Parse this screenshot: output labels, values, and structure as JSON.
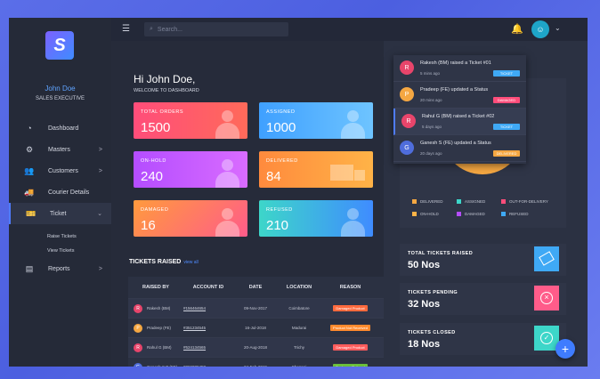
{
  "colors": {
    "accent": "#4f7cff",
    "total_orders": [
      "#ff4d7a",
      "#ff6a5a"
    ],
    "assigned": [
      "#3fa0ff",
      "#6ec4ff"
    ],
    "on_hold": [
      "#b44dff",
      "#d96cff"
    ],
    "delivered": [
      "#ff8a3d",
      "#ffb347"
    ],
    "damaged": [
      "#ff9a3d",
      "#ff5c8a"
    ],
    "refused": [
      "#3dd6c9",
      "#3f8cff"
    ]
  },
  "topbar": {
    "search_placeholder": "Search..."
  },
  "sidebar": {
    "user_name": "John Doe",
    "user_role": "SALES EXECUTIVE",
    "items": [
      {
        "label": "Dashboard",
        "icon": "gauge-icon",
        "chevron": ""
      },
      {
        "label": "Masters",
        "icon": "cog-icon",
        "chevron": ">"
      },
      {
        "label": "Customers",
        "icon": "users-icon",
        "chevron": ">"
      },
      {
        "label": "Courier Details",
        "icon": "truck-icon",
        "chevron": ""
      },
      {
        "label": "Ticket",
        "icon": "ticket-icon",
        "chevron": "⌄"
      }
    ],
    "sub_items": [
      "Raise Tickets",
      "View Tickets"
    ],
    "reports": {
      "label": "Reports",
      "icon": "report-icon",
      "chevron": ">"
    }
  },
  "greeting": {
    "title": "Hi John Doe,",
    "subtitle": "WELCOME TO DASHBOARD"
  },
  "cards": [
    {
      "label": "TOTAL ORDERS",
      "value": "1500"
    },
    {
      "label": "ASSIGNED",
      "value": "1000"
    },
    {
      "label": "ON-HOLD",
      "value": "240"
    },
    {
      "label": "DELIVERED",
      "value": "84"
    },
    {
      "label": "DAMAGED",
      "value": "16"
    },
    {
      "label": "REFUSED",
      "value": "210"
    }
  ],
  "tickets": {
    "title": "TICKETS RAISED",
    "view_all": "view all",
    "headers": [
      "RAISED BY",
      "ACCOUNT ID",
      "DATE",
      "LOCATION",
      "REASON"
    ],
    "rows": [
      {
        "initial": "R",
        "color": "#e8456b",
        "by": "Rakesh (BM)",
        "account": "#156464654",
        "date": "09-Nov-2017",
        "location": "Coimbatore",
        "reason": "Damaged Product",
        "reason_color": "#ff6a3d"
      },
      {
        "initial": "P",
        "color": "#f5a742",
        "by": "Pradeep (FE)",
        "account": "#351234545",
        "date": "16-Jul-2018",
        "location": "Madurai",
        "reason": "Product Not Received",
        "reason_color": "#ff8a2d"
      },
      {
        "initial": "R",
        "color": "#e8456b",
        "by": "Rahul G (BM)",
        "account": "#524134565",
        "date": "20-Aug-2018",
        "location": "Trichy",
        "reason": "Damaged Product",
        "reason_color": "#ff5c5c"
      },
      {
        "initial": "G",
        "color": "#4f6ddb",
        "by": "Ganesh S P (FE)",
        "account": "#266986458",
        "date": "04-Feb-2019",
        "location": "Chennai",
        "reason": "Customer Refused",
        "reason_color": "#6bbf3a"
      }
    ]
  },
  "notifications": [
    {
      "initial": "R",
      "color": "#e8456b",
      "text": "Rakesh (BM) raised a Ticket #01",
      "time": "5 mins ago",
      "badge": "TICKET",
      "badge_color": "#3fa9f5"
    },
    {
      "initial": "P",
      "color": "#f5a742",
      "text": "Pradeep (FE) updated a Status",
      "time": "20 mins ago",
      "badge": "DAMAGED",
      "badge_color": "#ff4d7a"
    },
    {
      "initial": "R",
      "color": "#e8456b",
      "text": "Rahul G (BM) raised a Ticket #02",
      "time": "5 days ago",
      "badge": "TICKET",
      "badge_color": "#3fa9f5"
    },
    {
      "initial": "G",
      "color": "#4f6ddb",
      "text": "Ganesh S (FE) updated a Status",
      "time": "20 days ago",
      "badge": "DELIVERED",
      "badge_color": "#f5a742"
    }
  ],
  "chart_data": {
    "type": "pie",
    "legend": [
      "DELIVERED",
      "ASSIGNED",
      "OUT-FOR-DELIVERY",
      "ON-HOLD",
      "DAMAGED",
      "REFUSED"
    ],
    "legend_colors": [
      "#f5a742",
      "#3dd6c9",
      "#ff4d7a",
      "#ffb347",
      "#b44dff",
      "#3fa9f5"
    ]
  },
  "stats": [
    {
      "label": "TOTAL TICKETS RAISED",
      "value": "50 Nos",
      "color": "#3fa9f5",
      "icon": "ticket-icon"
    },
    {
      "label": "TICKETS PENDING",
      "value": "32 Nos",
      "color": "#ff5c8a",
      "icon": "close-icon"
    },
    {
      "label": "TICKETS CLOSED",
      "value": "18 Nos",
      "color": "#3dd6c9",
      "icon": "check-icon"
    }
  ]
}
